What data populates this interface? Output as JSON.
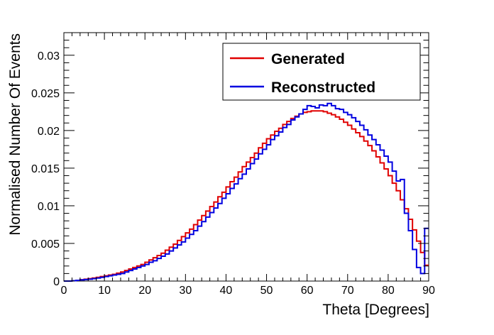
{
  "chart_data": {
    "type": "line",
    "title": "",
    "xlabel": "Theta [Degrees]",
    "ylabel": "Normalised Number Of Events",
    "xlim": [
      0,
      90
    ],
    "ylim": [
      0,
      0.033
    ],
    "x_ticks": [
      0,
      10,
      20,
      30,
      40,
      50,
      60,
      70,
      80,
      90
    ],
    "x_tick_labels": [
      "0",
      "10",
      "20",
      "30",
      "40",
      "50",
      "60",
      "70",
      "80",
      "90"
    ],
    "y_ticks": [
      0,
      0.005,
      0.01,
      0.015,
      0.02,
      0.025,
      0.03
    ],
    "y_tick_labels": [
      "0",
      "0.005",
      "0.01",
      "0.015",
      "0.02",
      "0.025",
      "0.03"
    ],
    "grid": false,
    "legend_position": "top-right",
    "bin_edges_start": 0,
    "bin_width": 1,
    "series": [
      {
        "name": "Generated",
        "color": "#e00000",
        "values": [
          0,
          0,
          5e-05,
          0.0001,
          0.00018,
          0.00025,
          0.00032,
          0.0004,
          0.0005,
          0.0006,
          0.0007,
          0.0008,
          0.0009,
          0.00105,
          0.0012,
          0.0014,
          0.0016,
          0.0018,
          0.002,
          0.0022,
          0.0025,
          0.0028,
          0.0031,
          0.0034,
          0.0037,
          0.0041,
          0.0045,
          0.0049,
          0.0054,
          0.0059,
          0.0064,
          0.0069,
          0.0075,
          0.0081,
          0.0087,
          0.0093,
          0.0099,
          0.0105,
          0.0112,
          0.0118,
          0.0125,
          0.0132,
          0.0138,
          0.0145,
          0.0152,
          0.0158,
          0.0164,
          0.017,
          0.0177,
          0.0183,
          0.0189,
          0.0194,
          0.0199,
          0.0203,
          0.0208,
          0.0212,
          0.0216,
          0.0219,
          0.0222,
          0.0224,
          0.0225,
          0.0226,
          0.0226,
          0.0226,
          0.0225,
          0.0223,
          0.0221,
          0.0218,
          0.0215,
          0.0211,
          0.0207,
          0.0202,
          0.0197,
          0.0192,
          0.0186,
          0.018,
          0.0173,
          0.0165,
          0.0157,
          0.0149,
          0.014,
          0.013,
          0.012,
          0.0108,
          0.0096,
          0.0082,
          0.0068,
          0.0053,
          0.0038,
          0.0021
        ]
      },
      {
        "name": "Reconstructed",
        "color": "#0000e0",
        "values": [
          0,
          0,
          5e-05,
          0.0001,
          0.00015,
          0.0002,
          0.00025,
          0.00032,
          0.0004,
          0.0005,
          0.0006,
          0.0007,
          0.0008,
          0.0009,
          0.001,
          0.0012,
          0.0014,
          0.0016,
          0.0018,
          0.002,
          0.0022,
          0.0025,
          0.0027,
          0.003,
          0.0033,
          0.0036,
          0.004,
          0.0044,
          0.0048,
          0.0052,
          0.0057,
          0.0062,
          0.0067,
          0.0073,
          0.0079,
          0.0085,
          0.0091,
          0.0097,
          0.0103,
          0.011,
          0.0116,
          0.0123,
          0.0129,
          0.0136,
          0.0142,
          0.0149,
          0.0156,
          0.0162,
          0.0169,
          0.0175,
          0.0181,
          0.0188,
          0.0193,
          0.0198,
          0.0204,
          0.0208,
          0.0214,
          0.0218,
          0.0222,
          0.0228,
          0.0233,
          0.0232,
          0.023,
          0.0234,
          0.0233,
          0.0236,
          0.0233,
          0.0229,
          0.0228,
          0.0224,
          0.0221,
          0.0217,
          0.0212,
          0.0207,
          0.0201,
          0.0194,
          0.0188,
          0.0181,
          0.0174,
          0.0166,
          0.0158,
          0.0146,
          0.0133,
          0.0135,
          0.009,
          0.0067,
          0.0042,
          0.0018,
          0.001,
          0.007
        ]
      }
    ]
  }
}
